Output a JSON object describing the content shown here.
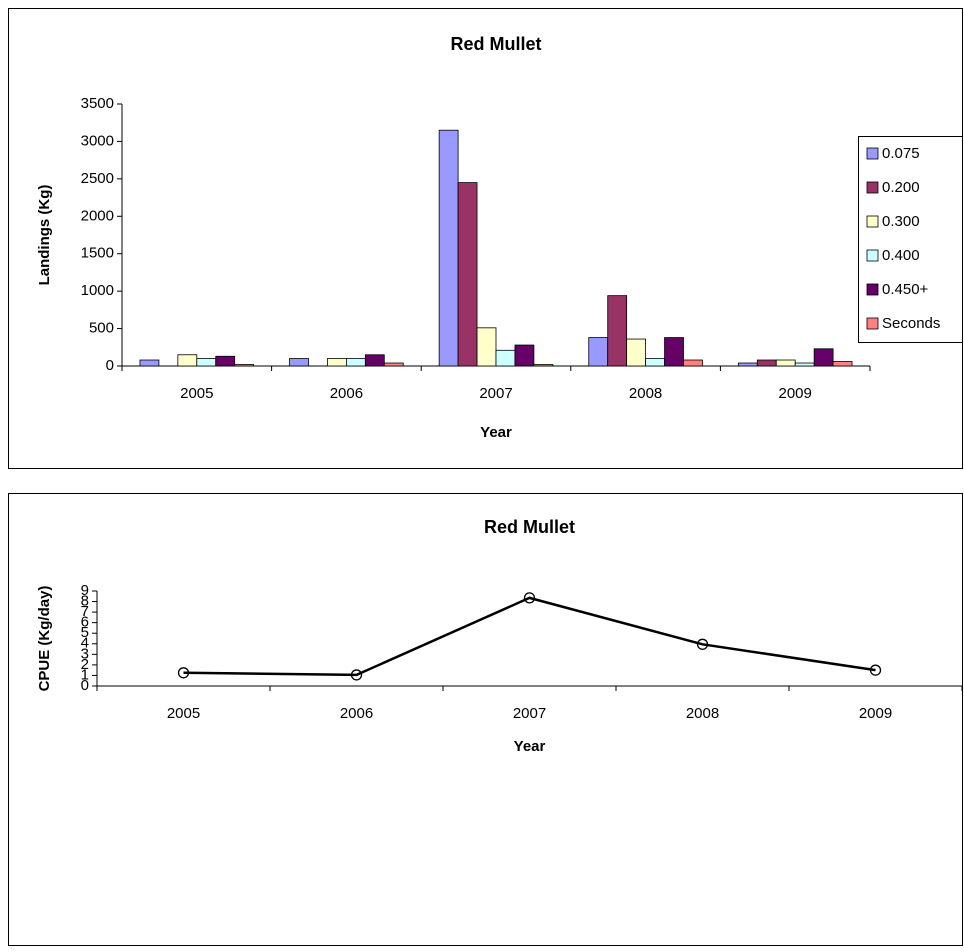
{
  "chart_data": [
    {
      "type": "bar",
      "title": "Red Mullet",
      "x_label": "Year",
      "y_label": "Landings (Kg)",
      "categories": [
        "2005",
        "2006",
        "2007",
        "2008",
        "2009"
      ],
      "series": [
        {
          "name": "0.075",
          "color": "#9999ff",
          "values": [
            80,
            100,
            3150,
            380,
            40
          ]
        },
        {
          "name": "0.200",
          "color": "#993366",
          "values": [
            0,
            0,
            2450,
            940,
            80
          ]
        },
        {
          "name": "0.300",
          "color": "#ffffcc",
          "values": [
            150,
            100,
            510,
            360,
            80
          ]
        },
        {
          "name": "0.400",
          "color": "#ccffff",
          "values": [
            100,
            100,
            210,
            100,
            40
          ]
        },
        {
          "name": "0.450+",
          "color": "#660066",
          "values": [
            130,
            150,
            280,
            380,
            230
          ]
        },
        {
          "name": "Seconds",
          "color": "#ff8080",
          "values": [
            20,
            40,
            20,
            80,
            60
          ]
        }
      ],
      "ylim": [
        0,
        3500
      ],
      "yticks": [
        0,
        500,
        1000,
        1500,
        2000,
        2500,
        3000,
        3500
      ],
      "legend": "right"
    },
    {
      "type": "line",
      "title": "Red Mullet",
      "x_label": "Year",
      "y_label": "CPUE  (Kg/day)",
      "categories": [
        "2005",
        "2006",
        "2007",
        "2008",
        "2009"
      ],
      "series": [
        {
          "name": "CPUE",
          "color": "#000000",
          "values": [
            1.25,
            1.05,
            8.35,
            3.95,
            1.5
          ]
        }
      ],
      "ylim": [
        0,
        9
      ],
      "yticks": [
        0,
        1,
        2,
        3,
        4,
        5,
        6,
        7,
        8,
        9
      ]
    }
  ]
}
